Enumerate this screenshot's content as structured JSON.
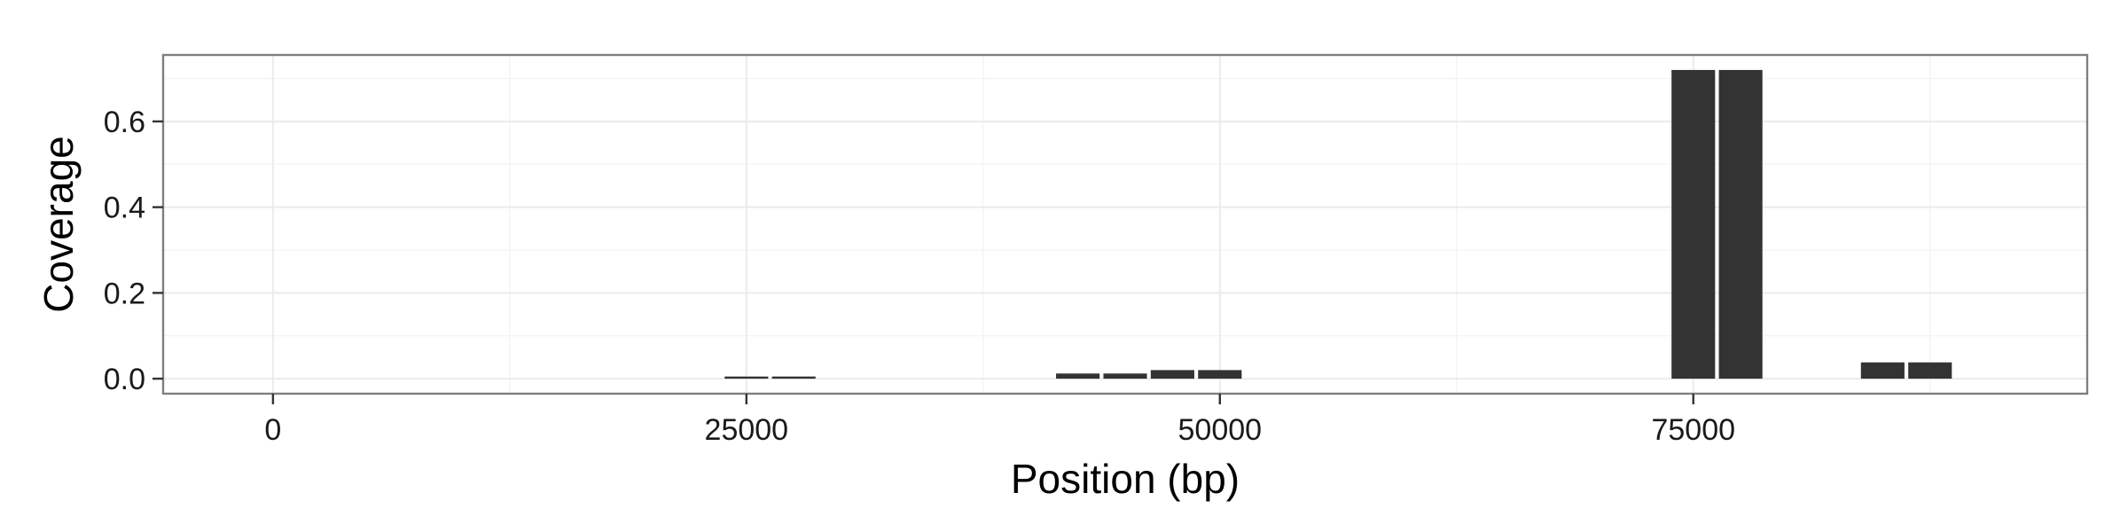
{
  "chart_data": {
    "type": "bar",
    "title": "",
    "xlabel": "Position (bp)",
    "ylabel": "Coverage",
    "xlim": [
      -5800,
      95800
    ],
    "ylim": [
      -0.035,
      0.755
    ],
    "x_ticks": [
      0,
      25000,
      50000,
      75000
    ],
    "x_tick_labels": [
      "0",
      "25000",
      "50000",
      "75000"
    ],
    "y_ticks": [
      0.0,
      0.2,
      0.4,
      0.6
    ],
    "y_tick_labels": [
      "0.0",
      "0.2",
      "0.4",
      "0.6"
    ],
    "bar_width": 2300,
    "grid": true,
    "legend": "none",
    "bar_color": "#333333",
    "series": [
      {
        "x": [
          25000,
          27500,
          42500,
          45000,
          47500,
          50000,
          75000,
          77500,
          85000,
          87500
        ],
        "values": [
          0.005,
          0.005,
          0.012,
          0.012,
          0.02,
          0.02,
          0.72,
          0.72,
          0.038,
          0.038
        ]
      }
    ]
  }
}
